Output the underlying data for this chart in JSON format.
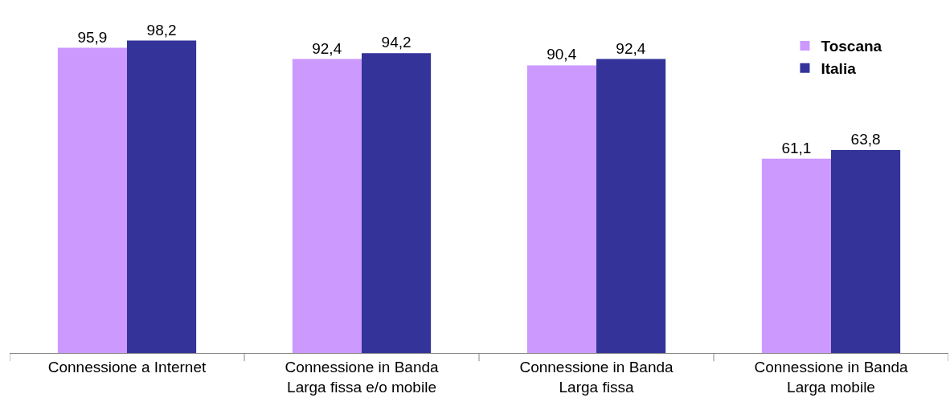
{
  "chart_data": {
    "type": "bar",
    "categories": [
      "Connessione a Internet",
      "Connessione in Banda\nLarga fissa e/o mobile",
      "Connessione in Banda\nLarga fissa",
      "Connessione in Banda\nLarga mobile"
    ],
    "series": [
      {
        "name": "Toscana",
        "color": "#cc99ff",
        "values": [
          95.9,
          92.4,
          90.4,
          61.1
        ],
        "value_labels": [
          "95,9",
          "92,4",
          "90,4",
          "61,1"
        ]
      },
      {
        "name": "Italia",
        "color": "#333399",
        "values": [
          98.2,
          94.2,
          92.4,
          63.8
        ],
        "value_labels": [
          "98,2",
          "94,2",
          "92,4",
          "63,8"
        ]
      }
    ],
    "tick_labels": "x",
    "grid": false,
    "legend": "top right"
  }
}
